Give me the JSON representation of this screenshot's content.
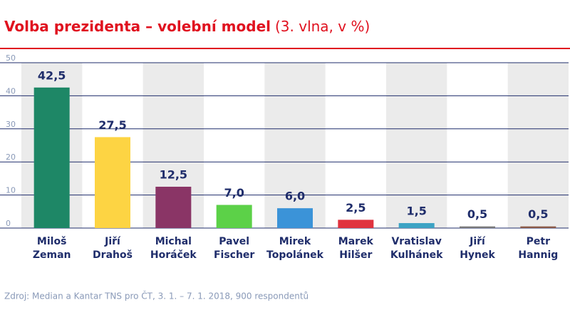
{
  "chart_data": {
    "type": "bar",
    "title": "Volba prezidenta – volební model",
    "subtitle": "(3. vlna, v %)",
    "source": "Zdroj: Median a Kantar TNS pro ČT, 3. 1. – 7. 1. 2018, 900 respondentů",
    "categories": [
      [
        "Miloš",
        "Zeman"
      ],
      [
        "Jiří",
        "Drahoš"
      ],
      [
        "Michal",
        "Horáček"
      ],
      [
        "Pavel",
        "Fischer"
      ],
      [
        "Mirek",
        "Topolánek"
      ],
      [
        "Marek",
        "Hilšer"
      ],
      [
        "Vratislav",
        "Kulhánek"
      ],
      [
        "Jiří",
        "Hynek"
      ],
      [
        "Petr",
        "Hannig"
      ]
    ],
    "values": [
      42.5,
      27.5,
      12.5,
      7.0,
      6.0,
      2.5,
      1.5,
      0.5,
      0.5
    ],
    "value_labels": [
      "42,5",
      "27,5",
      "12,5",
      "7,0",
      "6,0",
      "2,5",
      "1,5",
      "0,5",
      "0,5"
    ],
    "colors": [
      "#1e8766",
      "#fdd443",
      "#8a3566",
      "#5cd148",
      "#3b93d8",
      "#e0333f",
      "#3ca3c4",
      "#7a7a7a",
      "#8c5a48"
    ],
    "ylim": [
      0,
      50
    ],
    "yticks": [
      0,
      10,
      20,
      30,
      40,
      50
    ],
    "grid": true
  }
}
